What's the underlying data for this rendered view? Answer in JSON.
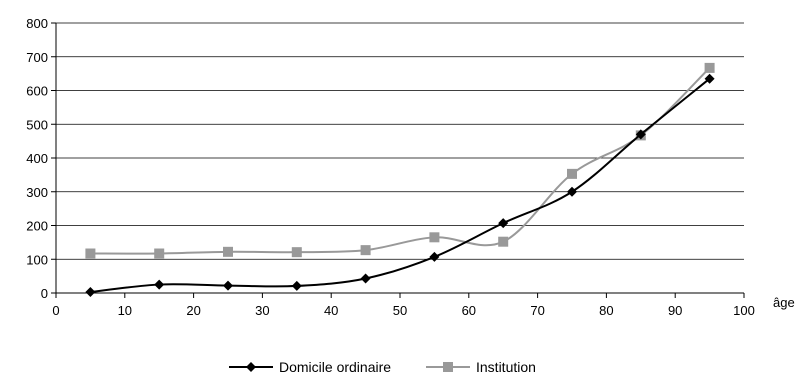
{
  "chart_data": {
    "type": "line",
    "xlabel": "âge",
    "ylabel": "",
    "xlim": [
      0,
      100
    ],
    "ylim": [
      0,
      800
    ],
    "x_ticks": [
      "0",
      "10",
      "20",
      "30",
      "40",
      "50",
      "60",
      "70",
      "80",
      "90",
      "100"
    ],
    "y_ticks": [
      "0",
      "100",
      "200",
      "300",
      "400",
      "500",
      "600",
      "700",
      "800"
    ],
    "grid": "horizontal",
    "legend_position": "bottom",
    "x": [
      5,
      15,
      25,
      35,
      45,
      55,
      65,
      75,
      85,
      95
    ],
    "series": [
      {
        "name": "Domicile ordinaire",
        "color": "#000000",
        "marker": "diamond",
        "values": [
          3,
          25,
          22,
          21,
          43,
          107,
          207,
          300,
          470,
          635
        ]
      },
      {
        "name": "Institution",
        "color": "#999999",
        "marker": "square",
        "values": [
          117,
          117,
          122,
          121,
          127,
          165,
          152,
          353,
          467,
          667
        ]
      }
    ]
  }
}
